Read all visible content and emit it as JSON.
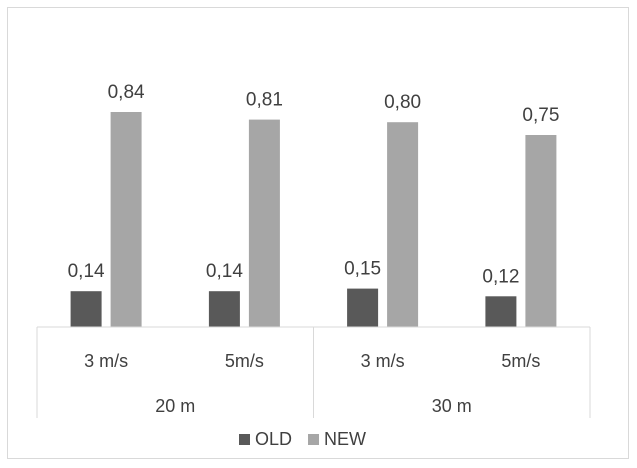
{
  "chart_data": {
    "type": "bar",
    "categories": [
      "3 m/s",
      "5m/s",
      "3 m/s",
      "5m/s"
    ],
    "groups": [
      {
        "label": "20 m",
        "categories": [
          0,
          1
        ]
      },
      {
        "label": "30 m",
        "categories": [
          2,
          3
        ]
      }
    ],
    "series": [
      {
        "name": "OLD",
        "color": "#595959",
        "values": [
          0.14,
          0.14,
          0.15,
          0.12
        ],
        "labels": [
          "0,14",
          "0,14",
          "0,15",
          "0,12"
        ]
      },
      {
        "name": "NEW",
        "color": "#a6a6a6",
        "values": [
          0.84,
          0.81,
          0.8,
          0.75
        ],
        "labels": [
          "0,84",
          "0,81",
          "0,80",
          "0,75"
        ]
      }
    ],
    "ylim": [
      0,
      1
    ],
    "grid": false,
    "legend_position": "bottom",
    "data_labels": true
  }
}
